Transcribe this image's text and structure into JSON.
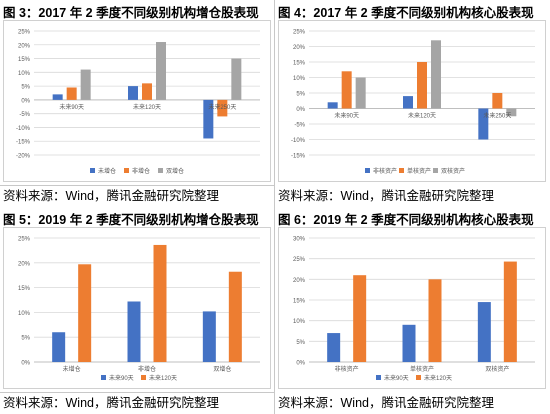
{
  "colors": {
    "blue": "#4472c4",
    "orange": "#ed7d31",
    "gray": "#a5a5a5"
  },
  "chart_data": [
    {
      "type": "bar",
      "title": "图 3：2017 年 2 季度不同级别机构增仓股表现",
      "source": "资料来源：Wind，腾讯金融研究院整理",
      "categories": [
        "未来90天",
        "未来120天",
        "未来250天"
      ],
      "series": [
        {
          "name": "未增仓",
          "values": [
            2,
            5,
            -14
          ]
        },
        {
          "name": "非增仓",
          "values": [
            4.5,
            6,
            -6
          ]
        },
        {
          "name": "双增仓",
          "values": [
            11,
            21,
            15
          ]
        }
      ],
      "ylim": [
        -20,
        25
      ],
      "yticks": [
        "25%",
        "20%",
        "15%",
        "10%",
        "5%",
        "0%",
        "-5%",
        "-10%",
        "-15%",
        "-20%"
      ],
      "legend": "bottom",
      "category_axis_at_zero": true
    },
    {
      "type": "bar",
      "title": "图 4：2017 年 2 季度不同级别机构核心股表现",
      "source": "资料来源：Wind，腾讯金融研究院整理",
      "categories": [
        "未来90天",
        "未来120天",
        "未来250天"
      ],
      "series": [
        {
          "name": "非核资产",
          "values": [
            2,
            4,
            -10
          ]
        },
        {
          "name": "单核资产",
          "values": [
            12,
            15,
            5
          ]
        },
        {
          "name": "双核资产",
          "values": [
            10,
            22,
            -2.5
          ]
        }
      ],
      "ylim": [
        -15,
        25
      ],
      "yticks": [
        "25%",
        "20%",
        "15%",
        "10%",
        "5%",
        "0%",
        "-5%",
        "-10%",
        "-15%"
      ],
      "legend": "bottom",
      "category_axis_at_zero": true
    },
    {
      "type": "bar",
      "title": "图 5：2019 年 2 季度不同级别机构增仓股表现",
      "source": "资料来源：Wind，腾讯金融研究院整理",
      "categories": [
        "未增仓",
        "非增仓",
        "双增仓"
      ],
      "series": [
        {
          "name": "未来90天",
          "values": [
            6,
            12.2,
            10.2
          ]
        },
        {
          "name": "未来120天",
          "values": [
            19.7,
            23.6,
            18.2
          ]
        }
      ],
      "ylim": [
        0,
        25
      ],
      "yticks": [
        "25%",
        "20%",
        "15%",
        "10%",
        "5%",
        "0%"
      ],
      "legend": "bottom",
      "category_axis_at_zero": false
    },
    {
      "type": "bar",
      "title": "图 6：2019 年 2 季度不同级别机构核心股表现",
      "source": "资料来源：Wind，腾讯金融研究院整理",
      "categories": [
        "非核资产",
        "单核资产",
        "双核资产"
      ],
      "series": [
        {
          "name": "未来90天",
          "values": [
            7,
            9,
            14.5
          ]
        },
        {
          "name": "未来120天",
          "values": [
            21,
            20,
            24.3
          ]
        }
      ],
      "ylim": [
        0,
        30
      ],
      "yticks": [
        "30%",
        "25%",
        "20%",
        "15%",
        "10%",
        "5%",
        "0%"
      ],
      "legend": "bottom",
      "category_axis_at_zero": false
    }
  ]
}
